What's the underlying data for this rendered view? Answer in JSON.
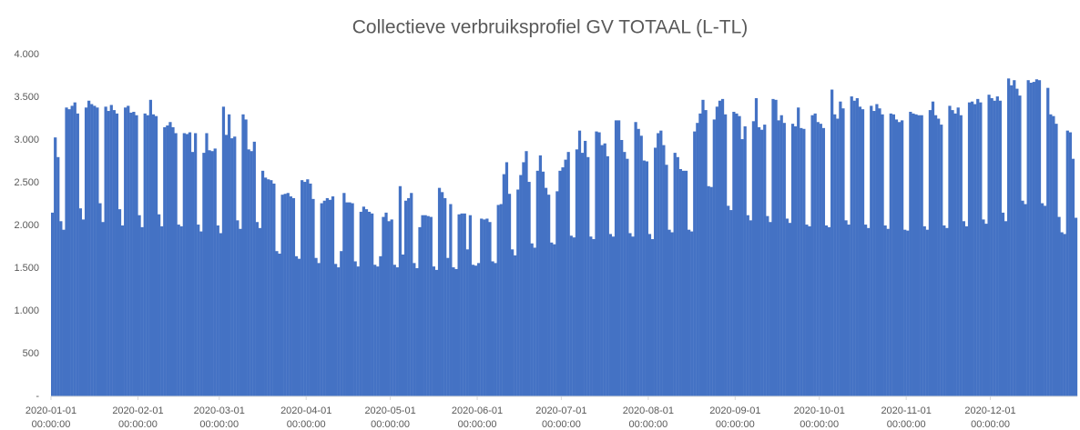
{
  "chart_data": {
    "type": "bar",
    "title": "Collectieve verbruiksprofiel GV TOTAAL (L-TL)",
    "color": "#4472c4",
    "xlim": [
      "2020-01-01",
      "2021-01-01"
    ],
    "xticks": [
      {
        "value": "2020-01-01",
        "label": [
          "2020-01-01",
          "00:00:00"
        ]
      },
      {
        "value": "2020-02-01",
        "label": [
          "2020-02-01",
          "00:00:00"
        ]
      },
      {
        "value": "2020-03-01",
        "label": [
          "2020-03-01",
          "00:00:00"
        ]
      },
      {
        "value": "2020-04-01",
        "label": [
          "2020-04-01",
          "00:00:00"
        ]
      },
      {
        "value": "2020-05-01",
        "label": [
          "2020-05-01",
          "00:00:00"
        ]
      },
      {
        "value": "2020-06-01",
        "label": [
          "2020-06-01",
          "00:00:00"
        ]
      },
      {
        "value": "2020-07-01",
        "label": [
          "2020-07-01",
          "00:00:00"
        ]
      },
      {
        "value": "2020-08-01",
        "label": [
          "2020-08-01",
          "00:00:00"
        ]
      },
      {
        "value": "2020-09-01",
        "label": [
          "2020-09-01",
          "00:00:00"
        ]
      },
      {
        "value": "2020-10-01",
        "label": [
          "2020-10-01",
          "00:00:00"
        ]
      },
      {
        "value": "2020-11-01",
        "label": [
          "2020-11-01",
          "00:00:00"
        ]
      },
      {
        "value": "2020-12-01",
        "label": [
          "2020-12-01",
          "00:00:00"
        ]
      }
    ],
    "ylim": [
      0,
      4000
    ],
    "yticks": [
      {
        "value": 4000,
        "label": "4.000"
      },
      {
        "value": 3500,
        "label": "3.500"
      },
      {
        "value": 3000,
        "label": "3.000"
      },
      {
        "value": 2500,
        "label": "2.500"
      },
      {
        "value": 2000,
        "label": "2.000"
      },
      {
        "value": 1500,
        "label": "1.500"
      },
      {
        "value": 1000,
        "label": "1.000"
      },
      500,
      {
        "value": 0,
        "label": "-"
      }
    ],
    "x": [
      "2020-01-01",
      "2020-01-02",
      "2020-01-03",
      "2020-01-04",
      "2020-01-05",
      "2020-01-06",
      "2020-01-07",
      "2020-01-08",
      "2020-01-09",
      "2020-01-10",
      "2020-01-11",
      "2020-01-12",
      "2020-01-13",
      "2020-01-14",
      "2020-01-15",
      "2020-01-16",
      "2020-01-17",
      "2020-01-18",
      "2020-01-19",
      "2020-01-20",
      "2020-01-21",
      "2020-01-22",
      "2020-01-23",
      "2020-01-24",
      "2020-01-25",
      "2020-01-26",
      "2020-01-27",
      "2020-01-28",
      "2020-01-29",
      "2020-01-30",
      "2020-01-31",
      "2020-02-01",
      "2020-02-02",
      "2020-02-03",
      "2020-02-04",
      "2020-02-05",
      "2020-02-06",
      "2020-02-07",
      "2020-02-08",
      "2020-02-09",
      "2020-02-10",
      "2020-02-11",
      "2020-02-12",
      "2020-02-13",
      "2020-02-14",
      "2020-02-15",
      "2020-02-16",
      "2020-02-17",
      "2020-02-18",
      "2020-02-19",
      "2020-02-20",
      "2020-02-21",
      "2020-02-22",
      "2020-02-23",
      "2020-02-24",
      "2020-02-25",
      "2020-02-26",
      "2020-02-27",
      "2020-02-28",
      "2020-02-29",
      "2020-03-01",
      "2020-03-02",
      "2020-03-03",
      "2020-03-04",
      "2020-03-05",
      "2020-03-06",
      "2020-03-07",
      "2020-03-08",
      "2020-03-09",
      "2020-03-10",
      "2020-03-11",
      "2020-03-12",
      "2020-03-13",
      "2020-03-14",
      "2020-03-15",
      "2020-03-16",
      "2020-03-17",
      "2020-03-18",
      "2020-03-19",
      "2020-03-20",
      "2020-03-21",
      "2020-03-22",
      "2020-03-23",
      "2020-03-24",
      "2020-03-25",
      "2020-03-26",
      "2020-03-27",
      "2020-03-28",
      "2020-03-29",
      "2020-03-30",
      "2020-03-31",
      "2020-04-01",
      "2020-04-02",
      "2020-04-03",
      "2020-04-04",
      "2020-04-05",
      "2020-04-06",
      "2020-04-07",
      "2020-04-08",
      "2020-04-09",
      "2020-04-10",
      "2020-04-11",
      "2020-04-12",
      "2020-04-13",
      "2020-04-14",
      "2020-04-15",
      "2020-04-16",
      "2020-04-17",
      "2020-04-18",
      "2020-04-19",
      "2020-04-20",
      "2020-04-21",
      "2020-04-22",
      "2020-04-23",
      "2020-04-24",
      "2020-04-25",
      "2020-04-26",
      "2020-04-27",
      "2020-04-28",
      "2020-04-29",
      "2020-04-30",
      "2020-05-01",
      "2020-05-02",
      "2020-05-03",
      "2020-05-04",
      "2020-05-05",
      "2020-05-06",
      "2020-05-07",
      "2020-05-08",
      "2020-05-09",
      "2020-05-10",
      "2020-05-11",
      "2020-05-12",
      "2020-05-13",
      "2020-05-14",
      "2020-05-15",
      "2020-05-16",
      "2020-05-17",
      "2020-05-18",
      "2020-05-19",
      "2020-05-20",
      "2020-05-21",
      "2020-05-22",
      "2020-05-23",
      "2020-05-24",
      "2020-05-25",
      "2020-05-26",
      "2020-05-27",
      "2020-05-28",
      "2020-05-29",
      "2020-05-30",
      "2020-05-31",
      "2020-06-01",
      "2020-06-02",
      "2020-06-03",
      "2020-06-04",
      "2020-06-05",
      "2020-06-06",
      "2020-06-07",
      "2020-06-08",
      "2020-06-09",
      "2020-06-10",
      "2020-06-11",
      "2020-06-12",
      "2020-06-13",
      "2020-06-14",
      "2020-06-15",
      "2020-06-16",
      "2020-06-17",
      "2020-06-18",
      "2020-06-19",
      "2020-06-20",
      "2020-06-21",
      "2020-06-22",
      "2020-06-23",
      "2020-06-24",
      "2020-06-25",
      "2020-06-26",
      "2020-06-27",
      "2020-06-28",
      "2020-06-29",
      "2020-06-30",
      "2020-07-01",
      "2020-07-02",
      "2020-07-03",
      "2020-07-04",
      "2020-07-05",
      "2020-07-06",
      "2020-07-07",
      "2020-07-08",
      "2020-07-09",
      "2020-07-10",
      "2020-07-11",
      "2020-07-12",
      "2020-07-13",
      "2020-07-14",
      "2020-07-15",
      "2020-07-16",
      "2020-07-17",
      "2020-07-18",
      "2020-07-19",
      "2020-07-20",
      "2020-07-21",
      "2020-07-22",
      "2020-07-23",
      "2020-07-24",
      "2020-07-25",
      "2020-07-26",
      "2020-07-27",
      "2020-07-28",
      "2020-07-29",
      "2020-07-30",
      "2020-07-31",
      "2020-08-01",
      "2020-08-02",
      "2020-08-03",
      "2020-08-04",
      "2020-08-05",
      "2020-08-06",
      "2020-08-07",
      "2020-08-08",
      "2020-08-09",
      "2020-08-10",
      "2020-08-11",
      "2020-08-12",
      "2020-08-13",
      "2020-08-14",
      "2020-08-15",
      "2020-08-16",
      "2020-08-17",
      "2020-08-18",
      "2020-08-19",
      "2020-08-20",
      "2020-08-21",
      "2020-08-22",
      "2020-08-23",
      "2020-08-24",
      "2020-08-25",
      "2020-08-26",
      "2020-08-27",
      "2020-08-28",
      "2020-08-29",
      "2020-08-30",
      "2020-08-31",
      "2020-09-01",
      "2020-09-02",
      "2020-09-03",
      "2020-09-04",
      "2020-09-05",
      "2020-09-06",
      "2020-09-07",
      "2020-09-08",
      "2020-09-09",
      "2020-09-10",
      "2020-09-11",
      "2020-09-12",
      "2020-09-13",
      "2020-09-14",
      "2020-09-15",
      "2020-09-16",
      "2020-09-17",
      "2020-09-18",
      "2020-09-19",
      "2020-09-20",
      "2020-09-21",
      "2020-09-22",
      "2020-09-23",
      "2020-09-24",
      "2020-09-25",
      "2020-09-26",
      "2020-09-27",
      "2020-09-28",
      "2020-09-29",
      "2020-09-30",
      "2020-10-01",
      "2020-10-02",
      "2020-10-03",
      "2020-10-04",
      "2020-10-05",
      "2020-10-06",
      "2020-10-07",
      "2020-10-08",
      "2020-10-09",
      "2020-10-10",
      "2020-10-11",
      "2020-10-12",
      "2020-10-13",
      "2020-10-14",
      "2020-10-15",
      "2020-10-16",
      "2020-10-17",
      "2020-10-18",
      "2020-10-19",
      "2020-10-20",
      "2020-10-21",
      "2020-10-22",
      "2020-10-23",
      "2020-10-24",
      "2020-10-25",
      "2020-10-26",
      "2020-10-27",
      "2020-10-28",
      "2020-10-29",
      "2020-10-30",
      "2020-10-31",
      "2020-11-01",
      "2020-11-02",
      "2020-11-03",
      "2020-11-04",
      "2020-11-05",
      "2020-11-06",
      "2020-11-07",
      "2020-11-08",
      "2020-11-09",
      "2020-11-10",
      "2020-11-11",
      "2020-11-12",
      "2020-11-13",
      "2020-11-14",
      "2020-11-15",
      "2020-11-16",
      "2020-11-17",
      "2020-11-18",
      "2020-11-19",
      "2020-11-20",
      "2020-11-21",
      "2020-11-22",
      "2020-11-23",
      "2020-11-24",
      "2020-11-25",
      "2020-11-26",
      "2020-11-27",
      "2020-11-28",
      "2020-11-29",
      "2020-11-30",
      "2020-12-01",
      "2020-12-02",
      "2020-12-03",
      "2020-12-04",
      "2020-12-05",
      "2020-12-06",
      "2020-12-07",
      "2020-12-08",
      "2020-12-09",
      "2020-12-10",
      "2020-12-11",
      "2020-12-12",
      "2020-12-13",
      "2020-12-14",
      "2020-12-15",
      "2020-12-16",
      "2020-12-17",
      "2020-12-18",
      "2020-12-19",
      "2020-12-20",
      "2020-12-21",
      "2020-12-22",
      "2020-12-23",
      "2020-12-24",
      "2020-12-25",
      "2020-12-26",
      "2020-12-27",
      "2020-12-28",
      "2020-12-29",
      "2020-12-30",
      "2020-12-31"
    ],
    "values": [
      2150,
      3030,
      2800,
      2050,
      1950,
      3380,
      3360,
      3400,
      3440,
      3310,
      2200,
      2070,
      3380,
      3460,
      3420,
      3400,
      3380,
      2260,
      2040,
      3390,
      3340,
      3410,
      3350,
      3310,
      2190,
      2000,
      3380,
      3400,
      3320,
      3330,
      3290,
      2120,
      1980,
      3310,
      3290,
      3470,
      3300,
      3280,
      2130,
      1990,
      3150,
      3170,
      3210,
      3150,
      3080,
      2010,
      1990,
      3080,
      3070,
      3090,
      2860,
      3080,
      2010,
      1930,
      2850,
      3080,
      2880,
      2870,
      2900,
      2000,
      1910,
      3390,
      3060,
      3300,
      3020,
      3040,
      2060,
      1960,
      3300,
      3240,
      2890,
      2870,
      2980,
      2040,
      1970,
      2640,
      2560,
      2540,
      2530,
      2490,
      1700,
      1670,
      2360,
      2370,
      2380,
      2340,
      2320,
      1640,
      1610,
      2530,
      2510,
      2540,
      2490,
      2310,
      1620,
      1560,
      2260,
      2290,
      2320,
      2300,
      2340,
      1550,
      1510,
      1700,
      2380,
      2270,
      2270,
      2260,
      1580,
      1520,
      2160,
      2220,
      2190,
      2160,
      2140,
      1540,
      1520,
      1640,
      2100,
      2150,
      2050,
      2070,
      1540,
      1510,
      2460,
      1660,
      2290,
      2320,
      2380,
      1560,
      1500,
      1980,
      2120,
      2120,
      2110,
      2100,
      1520,
      1480,
      2440,
      2390,
      2320,
      1620,
      2250,
      1510,
      1490,
      2130,
      2140,
      2140,
      1720,
      2120,
      1540,
      1530,
      1560,
      2080,
      2070,
      2080,
      2040,
      1580,
      1560,
      2240,
      2250,
      2600,
      2740,
      2370,
      1720,
      1650,
      2420,
      2590,
      2740,
      2870,
      2510,
      1790,
      1740,
      2640,
      2820,
      2630,
      2440,
      2360,
      1800,
      1780,
      2400,
      2640,
      2680,
      2770,
      2860,
      1880,
      1860,
      2890,
      3110,
      2850,
      2990,
      2800,
      1870,
      1840,
      3100,
      3090,
      2940,
      2960,
      2810,
      1900,
      1870,
      3230,
      3230,
      3000,
      2860,
      2780,
      1910,
      1870,
      3210,
      3130,
      3050,
      2760,
      2750,
      1900,
      1840,
      2910,
      3080,
      3110,
      2940,
      2710,
      1950,
      1920,
      2850,
      2800,
      2660,
      2640,
      2640,
      1950,
      1930,
      3100,
      3200,
      3310,
      3470,
      3350,
      2460,
      2450,
      3240,
      3390,
      3460,
      3480,
      3300,
      2230,
      2180,
      3330,
      3310,
      3280,
      3010,
      3160,
      2120,
      2060,
      3220,
      3490,
      3150,
      3120,
      3180,
      2110,
      2040,
      3480,
      3470,
      3230,
      3290,
      3200,
      2080,
      2030,
      3190,
      3160,
      3380,
      3140,
      3130,
      2010,
      1990,
      3290,
      3310,
      3210,
      3190,
      3140,
      2000,
      1980,
      3590,
      3300,
      3250,
      3450,
      3370,
      2060,
      2010,
      3510,
      3460,
      3490,
      3390,
      3360,
      2010,
      1970,
      3400,
      3340,
      3420,
      3370,
      3300,
      2000,
      1960,
      3310,
      3300,
      3240,
      3210,
      3230,
      1950,
      1940,
      3330,
      3310,
      3300,
      3290,
      3290,
      1990,
      1950,
      3350,
      3450,
      3290,
      3250,
      3180,
      2000,
      1970,
      3400,
      3350,
      3310,
      3380,
      3290,
      2050,
      1990,
      3440,
      3450,
      3420,
      3480,
      3440,
      2070,
      2020,
      3530,
      3490,
      3460,
      3510,
      3460,
      2150,
      2050,
      3720,
      3640,
      3700,
      3600,
      3520,
      2290,
      2250,
      3700,
      3670,
      3680,
      3710,
      3700,
      2260,
      2230,
      3610,
      3300,
      3280,
      3190,
      2100,
      1920,
      1900,
      3110,
      3090,
      2780,
      2090
    ]
  }
}
